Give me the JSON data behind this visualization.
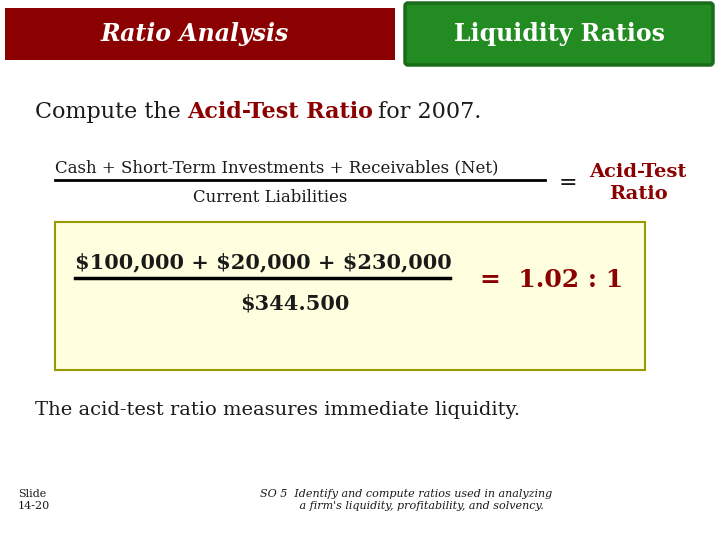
{
  "bg_color": "#ffffff",
  "header_left_color": "#8B0000",
  "header_right_color": "#228B22",
  "header_left_text": "Ratio Analysis",
  "header_right_text": "Liquidity Ratios",
  "header_text_color": "#ffffff",
  "title_normal": "Compute the ",
  "title_bold_color": "#8B0000",
  "title_bold": "Acid-Test Ratio",
  "title_after": " for 2007.",
  "formula_numerator": "Cash + Short-Term Investments + Receivables (Net)",
  "formula_denominator": "Current Liabilities",
  "formula_result_label": "Acid-Test\nRatio",
  "formula_result_color": "#8B0000",
  "box_bg_color": "#FFFFE0",
  "box_border_color": "#999900",
  "calc_numerator": "$100,000 + $20,000 + $230,000",
  "calc_denominator": "$344.500",
  "calc_result": "=  1.02 : 1",
  "calc_result_color": "#8B0000",
  "footer_text": "The acid-test ratio measures immediate liquidity.",
  "slide_label": "Slide\n14-20",
  "so_text": "SO 5  Identify and compute ratios used in analyzing\n         a firm's liquidity, profitability, and solvency.",
  "text_color": "#1a1a1a"
}
